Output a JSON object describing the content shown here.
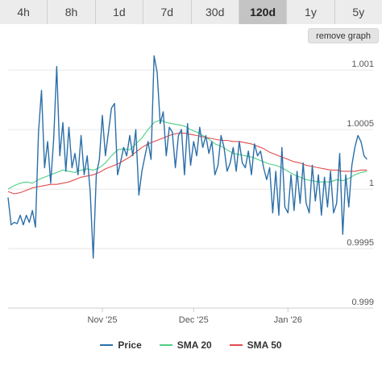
{
  "tabs": [
    {
      "label": "4h",
      "active": false
    },
    {
      "label": "8h",
      "active": false
    },
    {
      "label": "1d",
      "active": false
    },
    {
      "label": "7d",
      "active": false
    },
    {
      "label": "30d",
      "active": false
    },
    {
      "label": "120d",
      "active": true
    },
    {
      "label": "1y",
      "active": false
    },
    {
      "label": "5y",
      "active": false
    }
  ],
  "remove_graph_label": "remove graph",
  "colors": {
    "price": "#2b6fa8",
    "sma20": "#4ccf82",
    "sma50": "#e24b4b",
    "grid": "#e6e6e6",
    "axis_text": "#555555"
  },
  "chart_data": {
    "type": "line",
    "title": "",
    "xlabel": "",
    "ylabel": "",
    "x_range": [
      0,
      120
    ],
    "ylim": [
      0.999,
      1.00115
    ],
    "y_ticks": [
      {
        "value": 0.999,
        "label": "0.999"
      },
      {
        "value": 0.9995,
        "label": "0.9995"
      },
      {
        "value": 1.0,
        "label": "1"
      },
      {
        "value": 1.0005,
        "label": "1.0005"
      },
      {
        "value": 1.001,
        "label": "1.001"
      }
    ],
    "x_ticks": [
      {
        "x": 31,
        "label": "Nov '25"
      },
      {
        "x": 61,
        "label": "Dec '25"
      },
      {
        "x": 92,
        "label": "Jan '26"
      }
    ],
    "grid": true,
    "legend_position": "bottom",
    "series": [
      {
        "name": "Price",
        "key": "price",
        "values": [
          [
            0,
            0.99993
          ],
          [
            1,
            0.9997
          ],
          [
            2,
            0.99972
          ],
          [
            3,
            0.99971
          ],
          [
            4,
            0.99978
          ],
          [
            5,
            0.9997
          ],
          [
            6,
            0.99978
          ],
          [
            7,
            0.99972
          ],
          [
            8,
            0.99982
          ],
          [
            9,
            0.99968
          ],
          [
            10,
            1.00048
          ],
          [
            11,
            1.00083
          ],
          [
            12,
            1.00018
          ],
          [
            13,
            1.0004
          ],
          [
            14,
            1.00005
          ],
          [
            15,
            1.00042
          ],
          [
            16,
            1.00103
          ],
          [
            17,
            1.00028
          ],
          [
            18,
            1.00056
          ],
          [
            19,
            1.00015
          ],
          [
            20,
            1.00052
          ],
          [
            21,
            1.00018
          ],
          [
            22,
            1.0003
          ],
          [
            23,
            1.00012
          ],
          [
            24,
            1.00045
          ],
          [
            25,
            1.00012
          ],
          [
            26,
            1.00028
          ],
          [
            27,
            0.99998
          ],
          [
            28,
            0.99942
          ],
          [
            29,
            1.00012
          ],
          [
            30,
            1.00025
          ],
          [
            31,
            1.00062
          ],
          [
            32,
            1.00028
          ],
          [
            33,
            1.00048
          ],
          [
            34,
            1.00068
          ],
          [
            35,
            1.00072
          ],
          [
            36,
            1.00012
          ],
          [
            37,
            1.00023
          ],
          [
            38,
            1.00035
          ],
          [
            39,
            1.00028
          ],
          [
            40,
            1.00045
          ],
          [
            41,
            1.00028
          ],
          [
            42,
            1.0005
          ],
          [
            43,
            0.99995
          ],
          [
            44,
            1.00015
          ],
          [
            45,
            1.00028
          ],
          [
            46,
            1.0004
          ],
          [
            47,
            1.00025
          ],
          [
            48,
            1.00112
          ],
          [
            49,
            1.00098
          ],
          [
            50,
            1.00055
          ],
          [
            51,
            1.00065
          ],
          [
            52,
            1.00028
          ],
          [
            53,
            1.00052
          ],
          [
            54,
            1.00048
          ],
          [
            55,
            1.00018
          ],
          [
            56,
            1.00045
          ],
          [
            57,
            1.0005
          ],
          [
            58,
            1.00012
          ],
          [
            59,
            1.00055
          ],
          [
            60,
            1.0002
          ],
          [
            61,
            1.0004
          ],
          [
            62,
            1.00028
          ],
          [
            63,
            1.00052
          ],
          [
            64,
            1.00035
          ],
          [
            65,
            1.00045
          ],
          [
            66,
            1.0003
          ],
          [
            67,
            1.0004
          ],
          [
            68,
            1.00012
          ],
          [
            69,
            1.0002
          ],
          [
            70,
            1.00045
          ],
          [
            71,
            1.00035
          ],
          [
            72,
            1.00015
          ],
          [
            73,
            1.00022
          ],
          [
            74,
            1.00035
          ],
          [
            75,
            1.00015
          ],
          [
            76,
            1.0004
          ],
          [
            77,
            1.00022
          ],
          [
            78,
            1.00018
          ],
          [
            79,
            1.00032
          ],
          [
            80,
            1.00012
          ],
          [
            81,
            1.00038
          ],
          [
            82,
            1.00028
          ],
          [
            83,
            1.00032
          ],
          [
            84,
            1.00018
          ],
          [
            85,
            1.00008
          ],
          [
            86,
            1.00018
          ],
          [
            87,
            0.9998
          ],
          [
            88,
            1.00015
          ],
          [
            89,
            0.99978
          ],
          [
            90,
            1.00035
          ],
          [
            91,
            0.99985
          ],
          [
            92,
            0.9998
          ],
          [
            93,
            1.00012
          ],
          [
            94,
            0.99982
          ],
          [
            95,
            1.00015
          ],
          [
            96,
            0.99988
          ],
          [
            97,
            1.00022
          ],
          [
            98,
            0.99988
          ],
          [
            99,
            0.9998
          ],
          [
            100,
            1.0002
          ],
          [
            101,
            0.9999
          ],
          [
            102,
            1.00012
          ],
          [
            103,
            0.99978
          ],
          [
            104,
            1.0001
          ],
          [
            105,
            0.99985
          ],
          [
            106,
            1.00015
          ],
          [
            107,
            0.9998
          ],
          [
            108,
            0.99988
          ],
          [
            109,
            1.0003
          ],
          [
            110,
            0.99962
          ],
          [
            111,
            1.00012
          ],
          [
            112,
            0.99985
          ],
          [
            113,
            1.0002
          ],
          [
            114,
            1.00035
          ],
          [
            115,
            1.00045
          ],
          [
            116,
            1.0004
          ],
          [
            117,
            1.00028
          ],
          [
            118,
            1.00025
          ]
        ]
      },
      {
        "name": "SMA 20",
        "key": "sma20",
        "values": [
          [
            0,
            1.0
          ],
          [
            2,
            1.00003
          ],
          [
            4,
            1.00005
          ],
          [
            6,
            1.00006
          ],
          [
            8,
            1.00005
          ],
          [
            10,
            1.00008
          ],
          [
            12,
            1.0001
          ],
          [
            14,
            1.00012
          ],
          [
            16,
            1.00014
          ],
          [
            18,
            1.00016
          ],
          [
            20,
            1.00015
          ],
          [
            22,
            1.00014
          ],
          [
            24,
            1.00016
          ],
          [
            26,
            1.00017
          ],
          [
            28,
            1.00016
          ],
          [
            30,
            1.00018
          ],
          [
            32,
            1.00022
          ],
          [
            34,
            1.00028
          ],
          [
            36,
            1.00033
          ],
          [
            38,
            1.00034
          ],
          [
            40,
            1.00033
          ],
          [
            42,
            1.00038
          ],
          [
            44,
            1.00043
          ],
          [
            46,
            1.0005
          ],
          [
            48,
            1.00056
          ],
          [
            50,
            1.00058
          ],
          [
            52,
            1.00056
          ],
          [
            54,
            1.00055
          ],
          [
            56,
            1.00054
          ],
          [
            58,
            1.00053
          ],
          [
            60,
            1.0005
          ],
          [
            62,
            1.00048
          ],
          [
            64,
            1.00045
          ],
          [
            66,
            1.00042
          ],
          [
            68,
            1.00038
          ],
          [
            70,
            1.00036
          ],
          [
            72,
            1.00033
          ],
          [
            74,
            1.0003
          ],
          [
            76,
            1.00029
          ],
          [
            78,
            1.00028
          ],
          [
            80,
            1.00027
          ],
          [
            82,
            1.00025
          ],
          [
            84,
            1.00023
          ],
          [
            86,
            1.00021
          ],
          [
            88,
            1.0002
          ],
          [
            90,
            1.00018
          ],
          [
            92,
            1.00015
          ],
          [
            94,
            1.00012
          ],
          [
            96,
            1.0001
          ],
          [
            98,
            1.00008
          ],
          [
            100,
            1.00007
          ],
          [
            102,
            1.00006
          ],
          [
            104,
            1.00006
          ],
          [
            106,
            1.00006
          ],
          [
            108,
            1.00008
          ],
          [
            110,
            1.00007
          ],
          [
            112,
            1.00009
          ],
          [
            114,
            1.00012
          ],
          [
            116,
            1.00014
          ],
          [
            118,
            1.00015
          ]
        ]
      },
      {
        "name": "SMA 50",
        "key": "sma50",
        "values": [
          [
            0,
            0.99998
          ],
          [
            2,
            0.99996
          ],
          [
            4,
            0.99997
          ],
          [
            6,
            0.99999
          ],
          [
            8,
            1.00001
          ],
          [
            10,
            1.00002
          ],
          [
            12,
            1.00003
          ],
          [
            14,
            1.00004
          ],
          [
            16,
            1.00004
          ],
          [
            18,
            1.00005
          ],
          [
            20,
            1.00006
          ],
          [
            22,
            1.00008
          ],
          [
            24,
            1.0001
          ],
          [
            26,
            1.00011
          ],
          [
            28,
            1.00012
          ],
          [
            30,
            1.00014
          ],
          [
            32,
            1.00017
          ],
          [
            34,
            1.00019
          ],
          [
            36,
            1.00021
          ],
          [
            38,
            1.00024
          ],
          [
            40,
            1.00027
          ],
          [
            42,
            1.00031
          ],
          [
            44,
            1.00035
          ],
          [
            46,
            1.00038
          ],
          [
            48,
            1.0004
          ],
          [
            50,
            1.00042
          ],
          [
            52,
            1.00044
          ],
          [
            54,
            1.00046
          ],
          [
            56,
            1.00047
          ],
          [
            58,
            1.00047
          ],
          [
            60,
            1.00046
          ],
          [
            62,
            1.00045
          ],
          [
            64,
            1.00044
          ],
          [
            66,
            1.00043
          ],
          [
            68,
            1.00042
          ],
          [
            70,
            1.00041
          ],
          [
            72,
            1.00041
          ],
          [
            74,
            1.0004
          ],
          [
            76,
            1.0004
          ],
          [
            78,
            1.00039
          ],
          [
            80,
            1.00038
          ],
          [
            82,
            1.00036
          ],
          [
            84,
            1.00034
          ],
          [
            86,
            1.00031
          ],
          [
            88,
            1.00029
          ],
          [
            90,
            1.00027
          ],
          [
            92,
            1.00025
          ],
          [
            94,
            1.00023
          ],
          [
            96,
            1.00022
          ],
          [
            98,
            1.0002
          ],
          [
            100,
            1.00019
          ],
          [
            102,
            1.00018
          ],
          [
            104,
            1.00017
          ],
          [
            106,
            1.00016
          ],
          [
            108,
            1.00016
          ],
          [
            110,
            1.00015
          ],
          [
            112,
            1.00015
          ],
          [
            114,
            1.00015
          ],
          [
            116,
            1.00016
          ],
          [
            118,
            1.00016
          ]
        ]
      }
    ]
  }
}
